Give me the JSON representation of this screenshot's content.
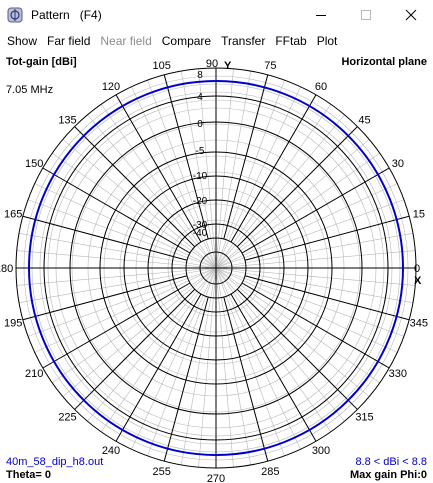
{
  "window": {
    "title": "Pattern   (F4)",
    "icon": "antenna-app-icon"
  },
  "menu": {
    "items": [
      {
        "label": "Show",
        "enabled": true
      },
      {
        "label": "Far field",
        "enabled": true
      },
      {
        "label": "Near field",
        "enabled": false
      },
      {
        "label": "Compare",
        "enabled": true
      },
      {
        "label": "Transfer",
        "enabled": true
      },
      {
        "label": "FFtab",
        "enabled": true
      },
      {
        "label": "Plot",
        "enabled": true
      }
    ]
  },
  "plot": {
    "quantity": "Tot-gain [dBi]",
    "plane": "Horizontal plane",
    "frequency": "7.05 MHz",
    "file": "40m_58_dip_h8.out",
    "range": "8.8 < dBi < 8.8",
    "theta": "Theta= 0",
    "max_gain": "Max gain Phi:0",
    "axis_y_label": "Y",
    "axis_x_label": "X",
    "angle_labels": [
      "0",
      "15",
      "30",
      "45",
      "60",
      "75",
      "90",
      "105",
      "120",
      "135",
      "150",
      "165",
      "180",
      "195",
      "210",
      "225",
      "240",
      "255",
      "270",
      "285",
      "300",
      "315",
      "330",
      "345"
    ],
    "gain_labels": [
      "8",
      "4",
      "0",
      "-5",
      "-10",
      "-20",
      "-30",
      "-40"
    ],
    "gain_values": [
      8.8,
      8.8
    ],
    "pattern_color": "#0000cc",
    "grid_color": "#000000"
  }
}
